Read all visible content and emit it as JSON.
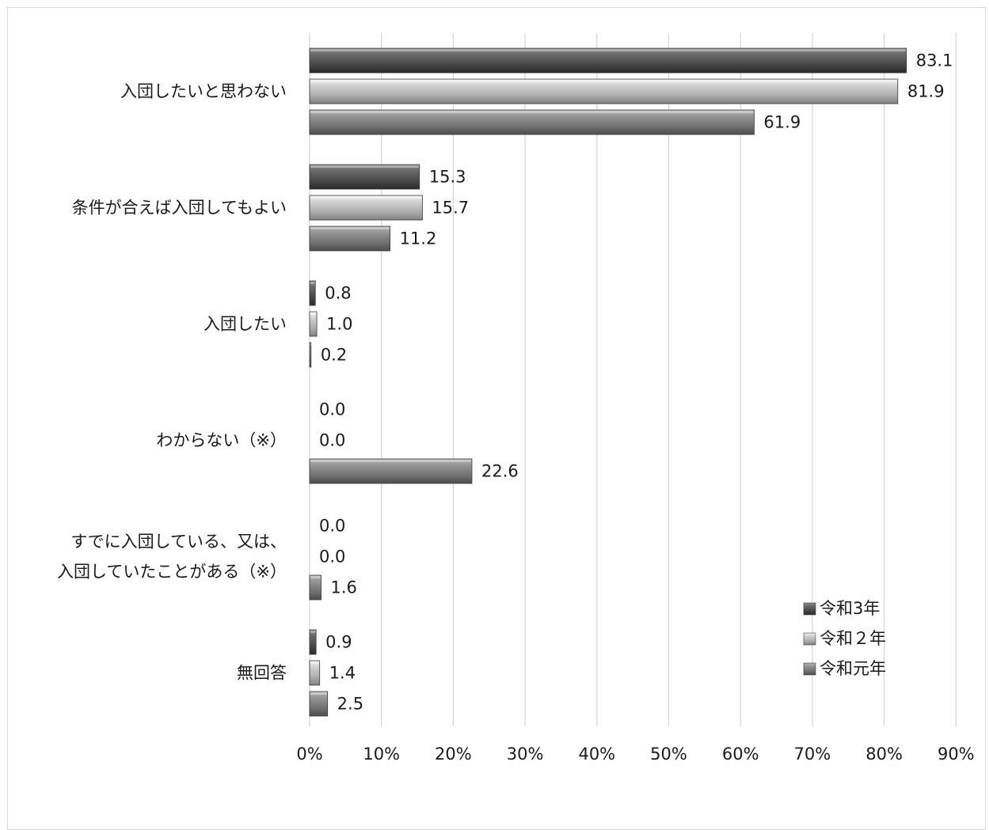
{
  "chart_data": {
    "type": "bar",
    "orientation": "horizontal",
    "categories": [
      [
        "入団したいと思わない"
      ],
      [
        "条件が合えば入団してもよい"
      ],
      [
        "入団したい"
      ],
      [
        "わからない（※）"
      ],
      [
        "すでに入団している、又は、",
        "入団していたことがある（※）"
      ],
      [
        "無回答"
      ]
    ],
    "series": [
      {
        "name": "令和3年",
        "color": "#5a5a5a",
        "values": [
          83.1,
          15.3,
          0.8,
          0.0,
          0.0,
          0.9
        ]
      },
      {
        "name": "令和２年",
        "color": "#b9b9b9",
        "values": [
          81.9,
          15.7,
          1.0,
          0.0,
          0.0,
          1.4
        ]
      },
      {
        "name": "令和元年",
        "color": "#858585",
        "values": [
          61.9,
          11.2,
          0.2,
          22.6,
          1.6,
          2.5
        ]
      }
    ],
    "value_labels": [
      [
        "83.1",
        "15.3",
        "0.8",
        "0.0",
        "0.0",
        "0.9"
      ],
      [
        "81.9",
        "15.7",
        "1.0",
        "0.0",
        "0.0",
        "1.4"
      ],
      [
        "61.9",
        "11.2",
        "0.2",
        "22.6",
        "1.6",
        "2.5"
      ]
    ],
    "xlim": [
      0,
      90
    ],
    "xticks": [
      "0%",
      "10%",
      "20%",
      "30%",
      "40%",
      "50%",
      "60%",
      "70%",
      "80%",
      "90%"
    ],
    "grid": true,
    "legend_position": "bottom-right",
    "title": "",
    "xlabel": "",
    "ylabel": ""
  }
}
